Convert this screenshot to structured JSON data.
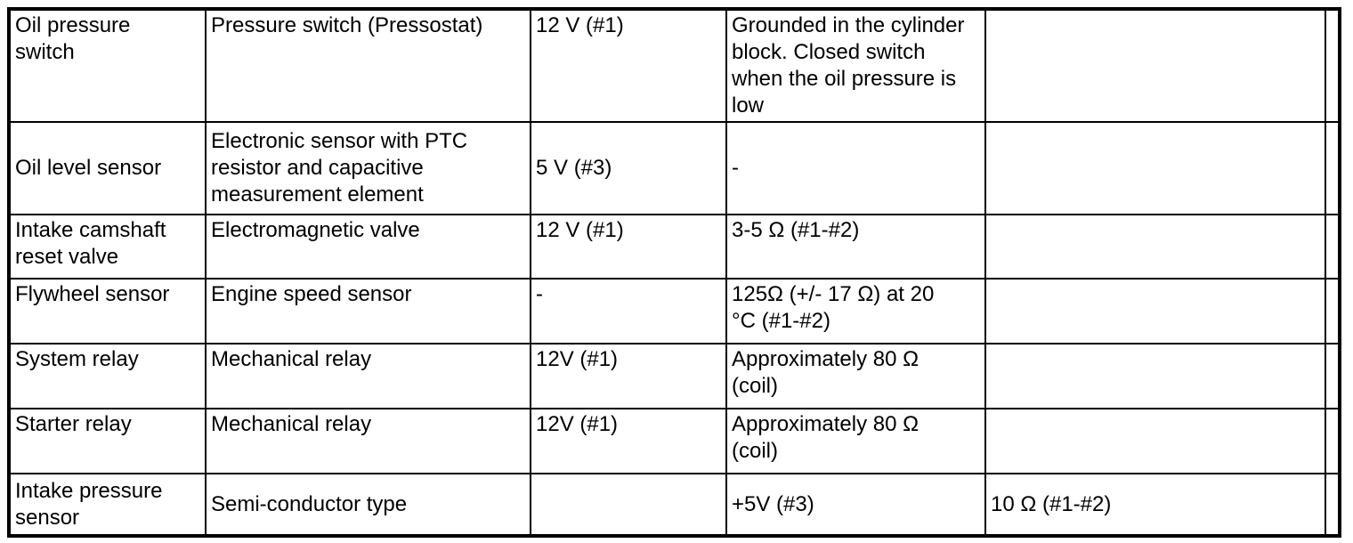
{
  "page": {
    "background_color": "#ffffff",
    "border_color": "#000000",
    "text_color": "#000000"
  },
  "table": {
    "rows": [
      {
        "cells": [
          "Oil pressure\nswitch",
          "Pressure switch (Pressostat)",
          "12 V (#1)",
          "Grounded in the cylinder\nblock. Closed switch\nwhen the oil pressure is\nlow",
          "",
          ""
        ]
      },
      {
        "cells": [
          "Oil level sensor",
          "Electronic sensor with PTC\nresistor and capacitive\nmeasurement element",
          "5 V (#3)",
          "-",
          "",
          ""
        ]
      },
      {
        "cells": [
          "Intake camshaft\nreset valve",
          "Electromagnetic valve",
          "12 V (#1)",
          "3-5 Ω (#1-#2)",
          "",
          ""
        ]
      },
      {
        "cells": [
          "Flywheel sensor",
          "Engine speed sensor",
          "-",
          "125Ω (+/- 17 Ω) at 20\n°C (#1-#2)",
          "",
          ""
        ]
      },
      {
        "cells": [
          "System relay",
          "Mechanical relay",
          "12V (#1)",
          "Approximately 80 Ω\n(coil)",
          "",
          ""
        ]
      },
      {
        "cells": [
          "Starter relay",
          "Mechanical relay",
          "12V (#1)",
          "Approximately 80 Ω\n(coil)",
          "",
          ""
        ]
      },
      {
        "cells": [
          "Intake pressure\nsensor",
          "Semi-conductor type",
          "",
          "+5V (#3)",
          "10 Ω (#1-#2)",
          ""
        ]
      }
    ]
  }
}
